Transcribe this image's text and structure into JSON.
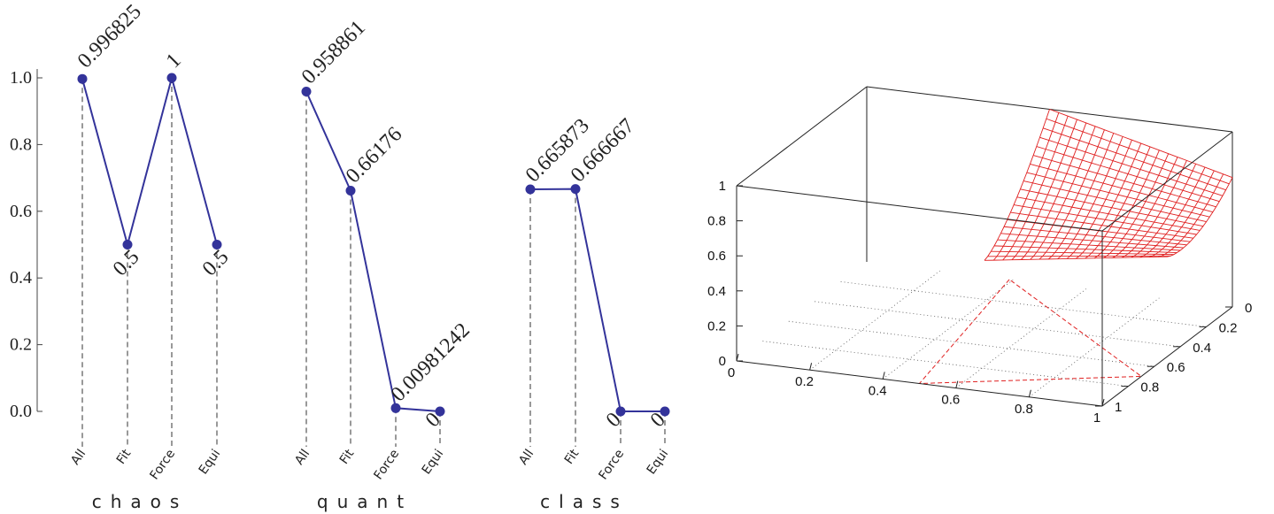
{
  "chart_data": [
    {
      "type": "line",
      "title": "chaos",
      "categories": [
        "All",
        "Fit",
        "Force",
        "Equi"
      ],
      "values": [
        0.996825,
        0.5,
        1,
        0.5
      ],
      "value_labels": [
        "0.996825",
        "0.5",
        "1",
        "0.5"
      ],
      "ylim": [
        0,
        1
      ],
      "yticks": [
        "0.0",
        "0.2",
        "0.4",
        "0.6",
        "0.8",
        "1.0"
      ],
      "color": "#33339a"
    },
    {
      "type": "line",
      "title": "quant",
      "categories": [
        "All",
        "Fit",
        "Force",
        "Equi"
      ],
      "values": [
        0.958861,
        0.66176,
        0.00981242,
        0
      ],
      "value_labels": [
        "0.958861",
        "0.66176",
        "0.00981242",
        "0"
      ],
      "ylim": [
        0,
        1
      ],
      "color": "#33339a"
    },
    {
      "type": "line",
      "title": "class",
      "categories": [
        "All",
        "Fit",
        "Force",
        "Equi"
      ],
      "values": [
        0.665873,
        0.666667,
        0,
        0
      ],
      "value_labels": [
        "0.665873",
        "0.666667",
        "0",
        "0"
      ],
      "ylim": [
        0,
        1
      ],
      "color": "#33339a"
    },
    {
      "type": "surface",
      "x_ticks": [
        "0",
        "0.2",
        "0.4",
        "0.6",
        "0.8",
        "1"
      ],
      "y_ticks": [
        "0",
        "0.2",
        "0.4",
        "0.6",
        "0.8",
        "1"
      ],
      "z_ticks": [
        "0",
        "0.2",
        "0.4",
        "0.6",
        "0.8",
        "1"
      ],
      "xlim": [
        0,
        1
      ],
      "ylim": [
        0,
        1
      ],
      "zlim": [
        0,
        1
      ],
      "surface_color": "#e02020",
      "grid": true
    }
  ]
}
